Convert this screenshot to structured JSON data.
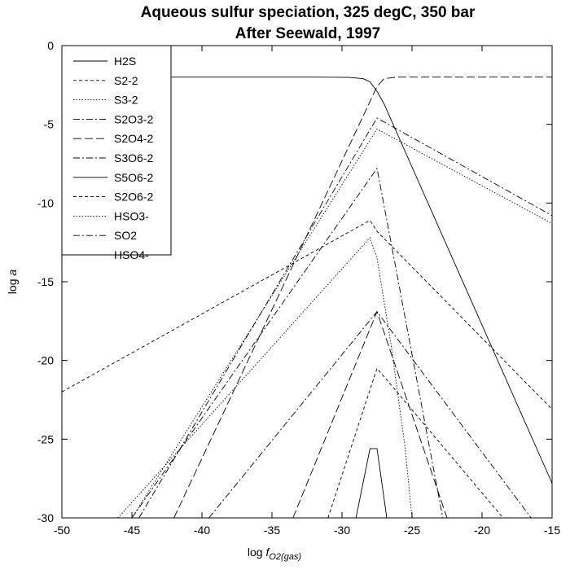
{
  "chart_data": {
    "type": "line",
    "title": "Aqueous sulfur speciation, 325 degC, 350 bar",
    "subtitle": "After Seewald, 1997",
    "xlabel": {
      "prefix": "log ",
      "var": "f",
      "sub": "O2(gas)"
    },
    "ylabel": {
      "prefix": "log ",
      "var": "a"
    },
    "xlim": [
      -50,
      -15
    ],
    "ylim": [
      -30,
      0
    ],
    "xticks": [
      -50,
      -45,
      -40,
      -35,
      -30,
      -25,
      -20,
      -15
    ],
    "yticks": [
      0,
      -5,
      -10,
      -15,
      -20,
      -25,
      -30
    ],
    "grid": false,
    "legend_position": "top-left",
    "series": [
      {
        "name": "H2S",
        "dash": "solid",
        "points": [
          [
            -50,
            -2.0
          ],
          [
            -32,
            -2.0
          ],
          [
            -29.5,
            -2.02
          ],
          [
            -28.5,
            -2.1
          ],
          [
            -28,
            -2.3
          ],
          [
            -27.5,
            -2.9
          ],
          [
            -27,
            -3.7
          ],
          [
            -15,
            -27.8
          ]
        ]
      },
      {
        "name": "S2-2",
        "dash": "dashed-short",
        "points": [
          [
            -50,
            -22.0
          ],
          [
            -28,
            -11.1
          ],
          [
            -27.5,
            -11.8
          ],
          [
            -15,
            -23.1
          ]
        ]
      },
      {
        "name": "S3-2",
        "dash": "dotted",
        "points": [
          [
            -46,
            -30
          ],
          [
            -28,
            -12.2
          ],
          [
            -27.5,
            -13.5
          ],
          [
            -26.5,
            -19
          ],
          [
            -25.5,
            -25.5
          ],
          [
            -25,
            -30
          ]
        ]
      },
      {
        "name": "S2O3-2",
        "dash": "dash-dot",
        "points": [
          [
            -45,
            -30
          ],
          [
            -27.5,
            -7.8
          ],
          [
            -26.5,
            -12.5
          ],
          [
            -24.5,
            -22
          ],
          [
            -22.8,
            -30
          ]
        ]
      },
      {
        "name": "S2O4-2",
        "dash": "long-dash",
        "points": [
          [
            -33.5,
            -30
          ],
          [
            -27.5,
            -16.9
          ],
          [
            -22.5,
            -30
          ]
        ]
      },
      {
        "name": "S3O6-2",
        "dash": "dash-dot",
        "points": [
          [
            -39.5,
            -30
          ],
          [
            -27.5,
            -16.9
          ],
          [
            -16.5,
            -30
          ]
        ]
      },
      {
        "name": "S5O6-2",
        "dash": "solid",
        "points": [
          [
            -29,
            -30
          ],
          [
            -28,
            -25.6
          ],
          [
            -27.5,
            -25.6
          ],
          [
            -26.8,
            -30
          ]
        ]
      },
      {
        "name": "S2O6-2",
        "dash": "dashed-short",
        "points": [
          [
            -31,
            -30
          ],
          [
            -27.5,
            -20.5
          ],
          [
            -18.5,
            -30
          ]
        ]
      },
      {
        "name": "HSO3-",
        "dash": "dotted",
        "points": [
          [
            -45,
            -30
          ],
          [
            -27.5,
            -5.3
          ],
          [
            -15,
            -11.3
          ]
        ]
      },
      {
        "name": "SO2",
        "dash": "dash-dot",
        "points": [
          [
            -44.5,
            -30
          ],
          [
            -27.5,
            -4.6
          ],
          [
            -15,
            -10.8
          ]
        ]
      },
      {
        "name": "HSO4-",
        "dash": "long-dash",
        "points": [
          [
            -42,
            -30
          ],
          [
            -27.5,
            -2.6
          ],
          [
            -27,
            -2.1
          ],
          [
            -26,
            -2.0
          ],
          [
            -15,
            -2.0
          ]
        ]
      }
    ]
  }
}
